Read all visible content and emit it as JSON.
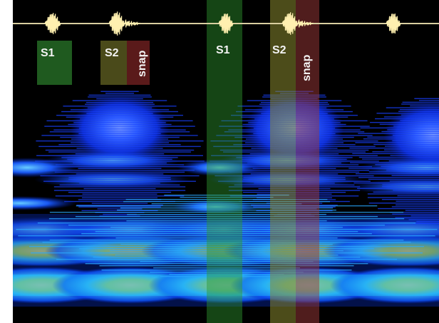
{
  "labels": {
    "s1_first": "S1",
    "s2_first": "S2",
    "snap_first": "snap",
    "s1_second": "S1",
    "s2_second": "S2",
    "snap_second": "snap"
  },
  "colors": {
    "background": "#000000",
    "waveform": "#fff0b0",
    "baseline": "#d9cfa0",
    "s1_box": "#1f5a1f",
    "s2_box": "#4a4a1a",
    "snap_box": "#5a1a1a",
    "label_text": "#f3f3f3"
  },
  "icons": [
    "heart-sound-waveform",
    "spectrogram"
  ]
}
